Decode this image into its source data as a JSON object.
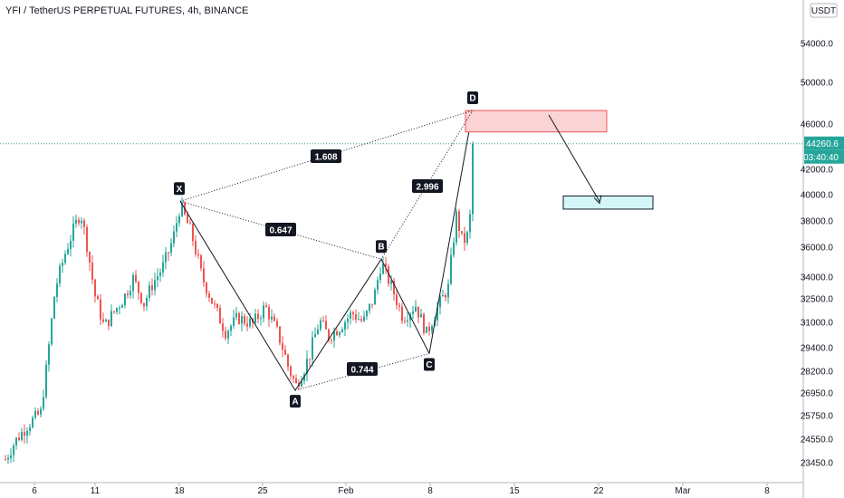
{
  "header": {
    "title": "YFI / TetherUS PERPETUAL FUTURES, 4h, BINANCE"
  },
  "price_axis": {
    "currency_label": "USDT",
    "last_price": "44260.6",
    "countdown": "03:40:40",
    "last_price_color": "#26a69a"
  },
  "colors": {
    "up": "#26a69a",
    "down": "#ef5350",
    "line": "#131722",
    "target_fill": "#fbd3d5",
    "target_border": "#ef5350",
    "tp_fill": "#d4f6f9",
    "tp_border": "#131722"
  },
  "chart_data": {
    "type": "candlestick",
    "pattern": "XABCD harmonic",
    "x_tick_labels": [
      "6",
      "11",
      "18",
      "25",
      "Feb",
      "8",
      "15",
      "22",
      "Mar",
      "8"
    ],
    "y_tick_labels": [
      "54000.0",
      "50000.0",
      "46000.0",
      "42000.0",
      "40000.0",
      "38000.0",
      "36000.0",
      "34000.0",
      "32500.0",
      "31000.0",
      "29400.0",
      "28200.0",
      "26950.0",
      "25750.0",
      "24550.0",
      "23450.0"
    ],
    "points": [
      {
        "label": "X",
        "price": 39500
      },
      {
        "label": "A",
        "price": 27100
      },
      {
        "label": "B",
        "price": 35200
      },
      {
        "label": "C",
        "price": 29100
      },
      {
        "label": "D",
        "price": 47300
      }
    ],
    "ratios": [
      {
        "label": "1.608",
        "from": "X",
        "to": "D"
      },
      {
        "label": "0.647",
        "from": "X",
        "to": "B"
      },
      {
        "label": "2.996",
        "from": "B",
        "to": "D"
      },
      {
        "label": "0.744",
        "from": "A",
        "to": "C"
      }
    ],
    "target_zone": {
      "price_low": 45300,
      "price_high": 47300
    },
    "take_profit_zone": {
      "price_low": 38900,
      "price_high": 39900
    },
    "last_price": 44260.6
  }
}
